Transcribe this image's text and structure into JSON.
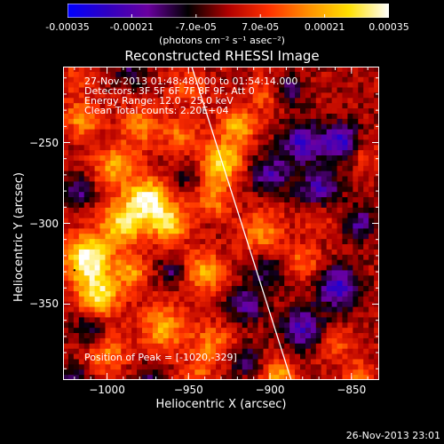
{
  "colorbar": {
    "tick_labels": [
      "-0.00035",
      "-0.00021",
      "-7.0e-05",
      "7.0e-05",
      "0.00021",
      "0.00035"
    ],
    "tick_values": [
      -0.00035,
      -0.00021,
      -7e-05,
      7e-05,
      0.00021,
      0.00035
    ],
    "range": [
      -0.00035,
      0.00035
    ],
    "unit_label": "(photons cm⁻² s⁻¹ asec⁻²)",
    "colors": [
      "#0000ff",
      "#3000c0",
      "#6a00a0",
      "#000000",
      "#b00000",
      "#ff3000",
      "#ff9000",
      "#ffe000",
      "#ffffff"
    ]
  },
  "chart_data": {
    "type": "heatmap",
    "title": "Reconstructed RHESSI Image",
    "xlabel": "Heliocentric X (arcsec)",
    "ylabel": "Heliocentric Y (arcsec)",
    "xlim": [
      -1027,
      -833
    ],
    "ylim": [
      -397,
      -203
    ],
    "x_ticks": [
      -1000,
      -950,
      -900,
      -850
    ],
    "x_tick_labels": [
      "−1000",
      "−950",
      "−900",
      "−850"
    ],
    "y_ticks": [
      -250,
      -300,
      -350
    ],
    "y_tick_labels": [
      "−250",
      "−300",
      "−350"
    ],
    "value_range": [
      -0.00035,
      0.00035
    ],
    "annotations": [
      "27-Nov-2013 01:48:48.000 to 01:54:14.000",
      "Detectors: 3F 5F 6F 7F 8F 9F, Att 0",
      "Energy Range: 12.0 - 25.0 keV",
      "Clean      Total counts: 2.20E+04"
    ],
    "peak_label": "Position of Peak = [-1020,-329]",
    "peak_position": [
      -1020,
      -329
    ],
    "limb_line": [
      [
        -948,
        -203
      ],
      [
        -887,
        -397
      ]
    ]
  },
  "footer": {
    "timestamp": "26-Nov-2013 23:01"
  }
}
